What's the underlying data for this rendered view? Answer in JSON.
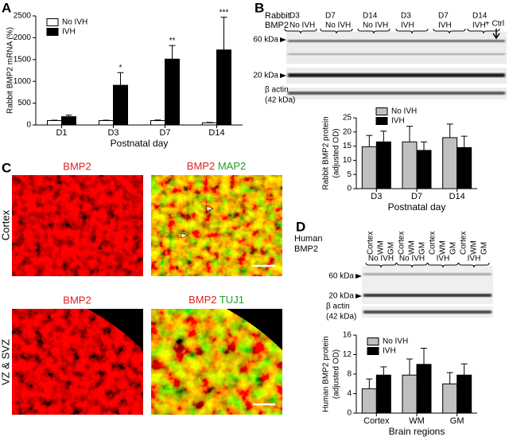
{
  "panel_labels": [
    "A",
    "B",
    "C",
    "D"
  ],
  "chart_data": [
    {
      "type": "bar",
      "ylabel": [
        "Rabbit BMP2 mRNA (%)"
      ],
      "xlabel": "Postnatal day",
      "categories": [
        "D1",
        "D3",
        "D7",
        "D14"
      ],
      "series": [
        {
          "name": "No IVH",
          "color": "#ffffff",
          "values": [
            100,
            100,
            100,
            50
          ],
          "errors": [
            10,
            10,
            15,
            10
          ]
        },
        {
          "name": "IVH",
          "color": "#000000",
          "values": [
            190,
            910,
            1510,
            1720
          ],
          "errors": [
            35,
            290,
            310,
            750
          ]
        }
      ],
      "significance": [
        null,
        "*",
        "**",
        "***"
      ],
      "ylim": [
        0,
        2500
      ],
      "yticks": [
        0,
        500,
        1000,
        1500,
        2000,
        2500
      ],
      "legend": "upper left"
    },
    {
      "type": "bar",
      "ylabel": [
        "Rabbit BMP2 protein",
        "(adjusted OD)"
      ],
      "xlabel": "Postnatal day",
      "categories": [
        "D3",
        "D7",
        "D14"
      ],
      "series": [
        {
          "name": "No IVH",
          "color": "#c0c0c0",
          "values": [
            14.8,
            16.5,
            18
          ],
          "errors": [
            4,
            5.5,
            4.8
          ]
        },
        {
          "name": "IVH",
          "color": "#000000",
          "values": [
            16.5,
            13.5,
            14.5
          ],
          "errors": [
            3.8,
            3,
            4
          ]
        }
      ],
      "ylim": [
        0,
        25
      ],
      "yticks": [
        0,
        5,
        10,
        15,
        20,
        25
      ],
      "legend": "top"
    },
    {
      "type": "bar",
      "ylabel": [
        "Human BMP2 protein",
        "(adjusted OD)"
      ],
      "xlabel": "Brain regions",
      "categories": [
        "Cortex",
        "WM",
        "GM"
      ],
      "series": [
        {
          "name": "No IVH",
          "color": "#c0c0c0",
          "values": [
            5,
            7.8,
            6
          ],
          "errors": [
            2,
            3.3,
            2.3
          ]
        },
        {
          "name": "IVH",
          "color": "#000000",
          "values": [
            7.8,
            10,
            7.8
          ],
          "errors": [
            1.7,
            3.3,
            2.3
          ]
        }
      ],
      "ylim": [
        0,
        16
      ],
      "yticks": [
        0,
        4,
        8,
        12,
        16
      ],
      "legend": "upper left"
    }
  ],
  "blot_b": {
    "title": [
      "Rabbit",
      "BMP2"
    ],
    "lanes": [
      [
        "D3",
        "No IVH"
      ],
      [
        "D7",
        "No IVH"
      ],
      [
        "D14",
        "No IVH"
      ],
      [
        "D3",
        "IVH"
      ],
      [
        "D7",
        "IVH"
      ],
      [
        "D14",
        "IVH"
      ]
    ],
    "control": "+ Ctrl",
    "markers": [
      "60 kDa",
      "20 kDa"
    ],
    "actin": [
      "β actin",
      "(42 kDa)"
    ]
  },
  "blot_d": {
    "title": [
      "Human",
      "BMP2"
    ],
    "lanes": [
      "Cortex",
      "WM",
      "GM",
      "Cortex",
      "WM",
      "GM",
      "Cortex",
      "WM",
      "GM",
      "Cortex",
      "WM",
      "GM"
    ],
    "groups": [
      "No IVH",
      "No IVH",
      "IVH",
      "IVH"
    ],
    "markers": [
      "60 kDa",
      "20 kDa"
    ],
    "actin": [
      "β actin",
      "(42 kDa)"
    ]
  },
  "panel_c": {
    "top_left": "BMP2",
    "top_right": [
      "BMP2",
      "MAP2"
    ],
    "bottom_left": "BMP2",
    "bottom_right": [
      "BMP2",
      "TUJ1"
    ],
    "rows": [
      "Cortex",
      "VZ & SVZ"
    ]
  }
}
